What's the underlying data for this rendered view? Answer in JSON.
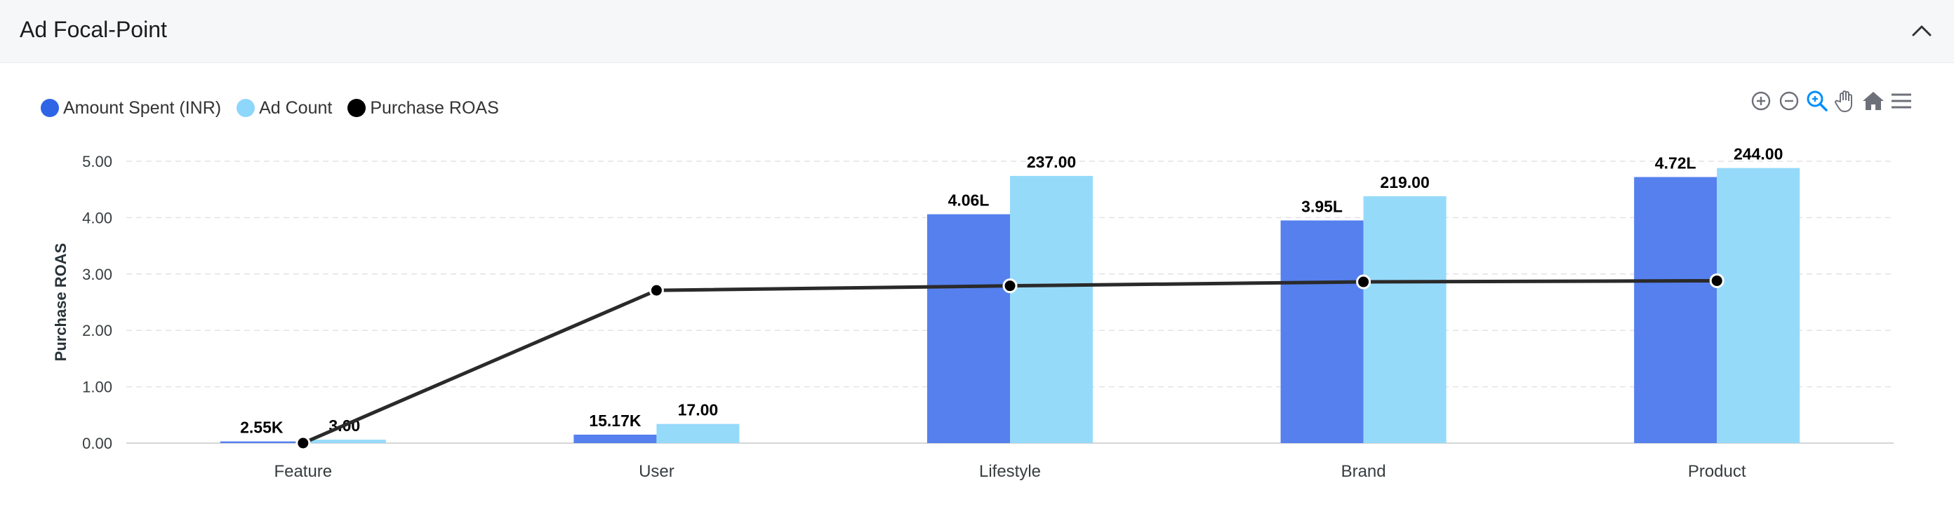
{
  "panel": {
    "title": "Ad Focal-Point"
  },
  "colors": {
    "amount": "#5580ee",
    "count": "#96dafa",
    "roas": "#000000",
    "line": "#2a2a2a"
  },
  "toolbar": [
    "zoom-in-icon",
    "zoom-out-icon",
    "zoom-select-icon",
    "pan-hand-icon",
    "home-reset-icon",
    "menu-icon"
  ],
  "chart_data": {
    "type": "bar",
    "categories": [
      "Feature",
      "User",
      "Lifestyle",
      "Brand",
      "Product"
    ],
    "series": [
      {
        "name": "Amount Spent (INR)",
        "kind": "bar",
        "values": [
          0.03,
          0.15,
          4.06,
          3.95,
          4.72
        ],
        "labels": [
          "2.55K",
          "15.17K",
          "4.06L",
          "3.95L",
          "4.72L"
        ]
      },
      {
        "name": "Ad Count",
        "kind": "bar",
        "values": [
          0.06,
          0.34,
          4.74,
          4.38,
          4.88
        ],
        "labels": [
          "3.00",
          "17.00",
          "237.00",
          "219.00",
          "244.00"
        ]
      },
      {
        "name": "Purchase ROAS",
        "kind": "line",
        "values": [
          0.0,
          2.71,
          2.79,
          2.86,
          2.88
        ]
      }
    ],
    "ylabel": "Purchase ROAS",
    "ylim": [
      0,
      5
    ],
    "yticks": [
      "0.00",
      "1.00",
      "2.00",
      "3.00",
      "4.00",
      "5.00"
    ],
    "grid": true,
    "legend_position": "top-left"
  }
}
